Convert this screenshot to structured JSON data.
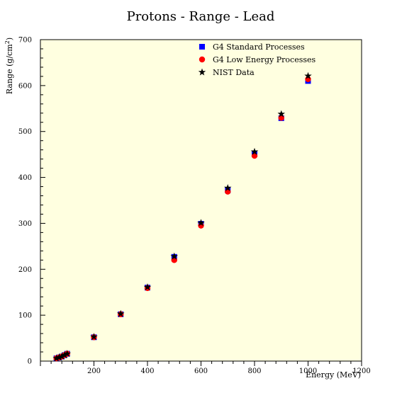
{
  "chart_data": {
    "type": "scatter",
    "title": "Protons - Range - Lead",
    "xlabel": "Energy (MeV)",
    "ylabel": "Range (g/cm",
    "ylabel_sup": "2",
    "ylabel_close": ")",
    "xlim": [
      0,
      1200
    ],
    "ylim": [
      0,
      700
    ],
    "x_ticks": [
      0,
      200,
      400,
      600,
      800,
      1000,
      1200
    ],
    "y_ticks": [
      0,
      100,
      200,
      300,
      400,
      500,
      600,
      700
    ],
    "grid": false,
    "legend_position": "top-right",
    "plot_background": "#ffffe0",
    "series": [
      {
        "name": "G4 Standard Processes",
        "marker": "square",
        "color": "#0000ff",
        "points": [
          {
            "x": 60,
            "y": 6
          },
          {
            "x": 70,
            "y": 8
          },
          {
            "x": 80,
            "y": 10
          },
          {
            "x": 90,
            "y": 13
          },
          {
            "x": 100,
            "y": 16
          },
          {
            "x": 200,
            "y": 52
          },
          {
            "x": 300,
            "y": 102
          },
          {
            "x": 400,
            "y": 160
          },
          {
            "x": 500,
            "y": 227
          },
          {
            "x": 600,
            "y": 299
          },
          {
            "x": 700,
            "y": 372
          },
          {
            "x": 800,
            "y": 451
          },
          {
            "x": 900,
            "y": 529
          },
          {
            "x": 1000,
            "y": 610
          }
        ]
      },
      {
        "name": "G4 Low Energy Processes",
        "marker": "circle",
        "color": "#ff0000",
        "points": [
          {
            "x": 60,
            "y": 6
          },
          {
            "x": 70,
            "y": 8
          },
          {
            "x": 80,
            "y": 10
          },
          {
            "x": 90,
            "y": 13
          },
          {
            "x": 100,
            "y": 16
          },
          {
            "x": 200,
            "y": 52
          },
          {
            "x": 300,
            "y": 102
          },
          {
            "x": 400,
            "y": 159
          },
          {
            "x": 500,
            "y": 220
          },
          {
            "x": 600,
            "y": 295
          },
          {
            "x": 700,
            "y": 369
          },
          {
            "x": 800,
            "y": 447
          },
          {
            "x": 900,
            "y": 530
          },
          {
            "x": 1000,
            "y": 614
          }
        ]
      },
      {
        "name": "NIST Data",
        "marker": "star",
        "color": "#000000",
        "points": [
          {
            "x": 60,
            "y": 6
          },
          {
            "x": 70,
            "y": 8
          },
          {
            "x": 80,
            "y": 10
          },
          {
            "x": 90,
            "y": 13
          },
          {
            "x": 100,
            "y": 16
          },
          {
            "x": 200,
            "y": 53
          },
          {
            "x": 300,
            "y": 103
          },
          {
            "x": 400,
            "y": 161
          },
          {
            "x": 500,
            "y": 228
          },
          {
            "x": 600,
            "y": 301
          },
          {
            "x": 700,
            "y": 377
          },
          {
            "x": 800,
            "y": 456
          },
          {
            "x": 900,
            "y": 538
          },
          {
            "x": 1000,
            "y": 621
          }
        ]
      }
    ]
  }
}
